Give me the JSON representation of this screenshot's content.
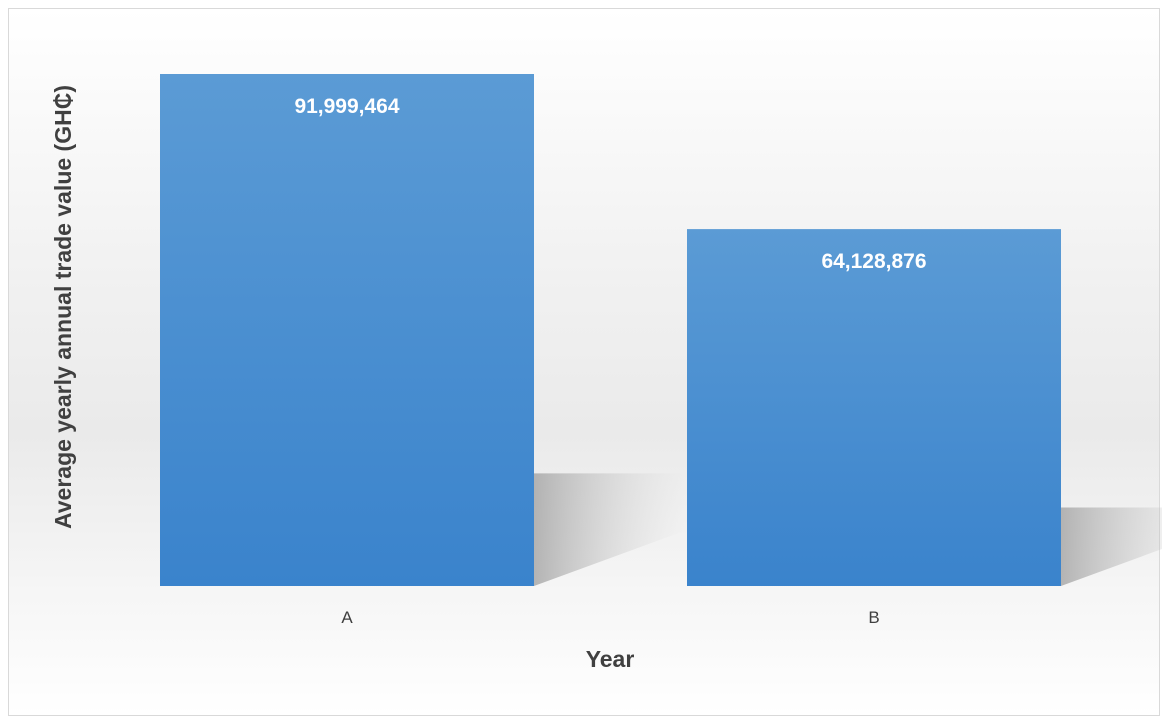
{
  "chart_data": {
    "type": "bar",
    "categories": [
      "A",
      "B"
    ],
    "values": [
      91999464,
      64128876
    ],
    "value_labels": [
      "91,999,464",
      "64,128,876"
    ],
    "title": "",
    "xlabel": "Year",
    "ylabel": "Average yearly annual trade value (GH₵)",
    "ylim": [
      0,
      91999464
    ],
    "grid": false,
    "legend": "none",
    "bar_color": "#4a8fd4",
    "bar_color_top": "#5b9bd5",
    "bar_color_bottom": "#3a83cc",
    "label_color": "#ffffff",
    "axis_text_color": "#404040"
  }
}
